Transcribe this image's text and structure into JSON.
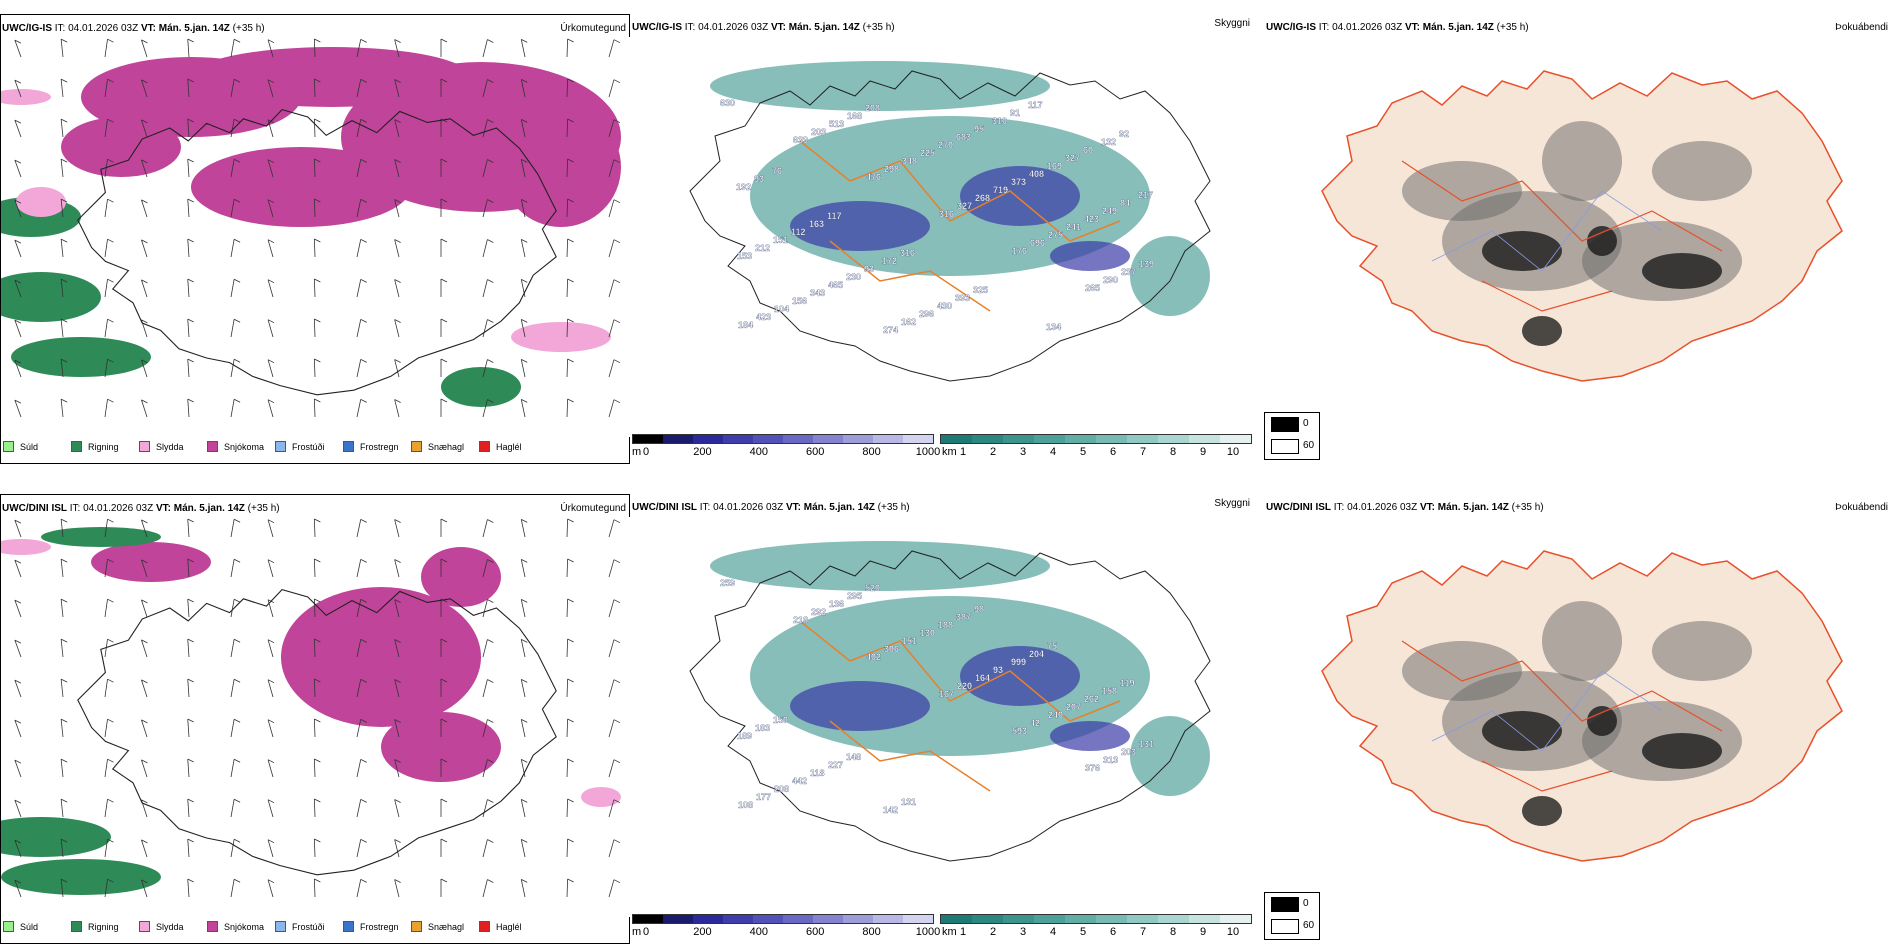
{
  "rows": [
    {
      "model": "UWC/IG-IS",
      "it_label": "IT:",
      "it_value": "04.01.2026 03Z",
      "vt_label": "VT:",
      "vt_value": "Mán. 5.jan. 14Z",
      "lead": "(+35 h)"
    },
    {
      "model": "UWC/DINI ISL",
      "it_label": "IT:",
      "it_value": "04.01.2026 03Z",
      "vt_label": "VT:",
      "vt_value": "Mán. 5.jan. 14Z",
      "lead": "(+35 h)"
    }
  ],
  "panel_types": {
    "precip": "Úrkomutegund",
    "visibility": "Skyggni",
    "cloud": "Þokuábendi"
  },
  "precip_legend": [
    {
      "label": "Súld",
      "color": "#98f08a"
    },
    {
      "label": "Rigning",
      "color": "#2e8b57"
    },
    {
      "label": "Slydda",
      "color": "#f2a7d8"
    },
    {
      "label": "Snjókoma",
      "color": "#c0449a"
    },
    {
      "label": "Frostúði",
      "color": "#8ab8ee"
    },
    {
      "label": "Frostregn",
      "color": "#3a73c8"
    },
    {
      "label": "Snæhagl",
      "color": "#e8a030"
    },
    {
      "label": "Haglél",
      "color": "#e02020"
    }
  ],
  "elevation_bar": {
    "unit": "m",
    "ticks": [
      "0",
      "200",
      "400",
      "600",
      "800",
      "1000"
    ],
    "colors": [
      "#000000",
      "#1b1b6e",
      "#2a2a9a",
      "#3d3dab",
      "#5252b8",
      "#6a6ac4",
      "#8383cf",
      "#9d9dda",
      "#b8b8e5",
      "#d4d4f0"
    ]
  },
  "visibility_bar": {
    "unit": "km",
    "ticks": [
      "1",
      "2",
      "3",
      "4",
      "5",
      "6",
      "7",
      "8",
      "9",
      "10"
    ],
    "colors": [
      "#1f7a75",
      "#2d8781",
      "#3d948d",
      "#4ea19a",
      "#62aea7",
      "#78bbb4",
      "#90c8c2",
      "#aad5d0",
      "#c6e3df",
      "#e4f1ef"
    ]
  },
  "cloud_legend": {
    "high": "0",
    "low": "60",
    "high_color": "#000000",
    "low_color": "#ffffff"
  },
  "station_values": {
    "row1": [
      "630",
      "639",
      "476",
      "316",
      "176",
      "265",
      "184",
      "203",
      "298",
      "327",
      "696",
      "290",
      "423",
      "513",
      "348",
      "268",
      "275",
      "237",
      "104",
      "168",
      "225",
      "719",
      "241",
      "139",
      "156",
      "208",
      "270",
      "373",
      "423",
      "153",
      "343",
      "274",
      "683",
      "408",
      "249",
      "212",
      "465",
      "162",
      "95",
      "169",
      "84",
      "151",
      "230",
      "296",
      "310",
      "327",
      "217",
      "112",
      "93",
      "430",
      "91",
      "60",
      "192",
      "163",
      "172",
      "393",
      "117",
      "132",
      "93",
      "117",
      "316",
      "325",
      "134",
      "92",
      "76"
    ],
    "row2": [
      "259",
      "218",
      "402",
      "167",
      "593",
      "376",
      "108",
      "292",
      "306",
      "220",
      "42",
      "313",
      "177",
      "136",
      "151",
      "164",
      "240",
      "203",
      "208",
      "295",
      "130",
      "93",
      "207",
      "131",
      "442",
      "520",
      "188",
      "999",
      "262",
      "189",
      "118",
      "142",
      "387",
      "204",
      "158",
      "183",
      "227",
      "131",
      "98",
      "75",
      "119",
      "150",
      "148"
    ]
  }
}
